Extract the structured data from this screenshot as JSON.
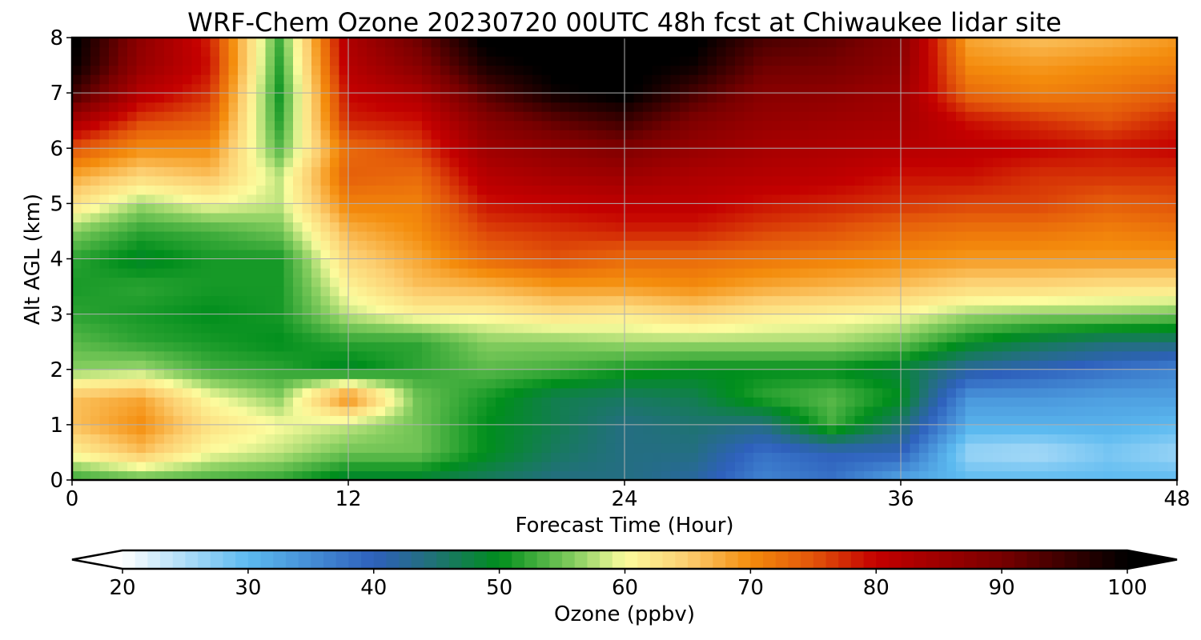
{
  "chart_data": {
    "type": "heatmap",
    "title": "WRF-Chem Ozone  20230720 00UTC 48h fcst at Chiwaukee lidar site",
    "xlabel": "Forecast Time (Hour)",
    "ylabel": "Alt AGL (km)",
    "xlim": [
      0,
      48
    ],
    "ylim": [
      0,
      8
    ],
    "xticks": [
      "0",
      "12",
      "24",
      "36",
      "48"
    ],
    "yticks": [
      "0",
      "1",
      "2",
      "3",
      "4",
      "5",
      "6",
      "7",
      "8"
    ],
    "grid": true,
    "colorbar": {
      "label": "Ozone  (ppbv)",
      "range": [
        20,
        100
      ],
      "ticks": [
        "20",
        "30",
        "40",
        "50",
        "60",
        "70",
        "80",
        "90",
        "100"
      ],
      "extend": "both",
      "orientation": "horizontal"
    },
    "x": [
      0,
      3,
      6,
      9,
      12,
      15,
      18,
      21,
      24,
      27,
      30,
      33,
      36,
      39,
      42,
      45,
      48
    ],
    "y": [
      0,
      0.5,
      1,
      1.5,
      2,
      2.5,
      3,
      3.5,
      4,
      4.5,
      5,
      5.5,
      6,
      6.5,
      7,
      7.5,
      8
    ],
    "z": [
      [
        52,
        54,
        53,
        52,
        48,
        48,
        46,
        44,
        44,
        42,
        36,
        38,
        32,
        30,
        30,
        30,
        30
      ],
      [
        61,
        66,
        60,
        58,
        55,
        55,
        50,
        46,
        44,
        44,
        38,
        40,
        40,
        26,
        25,
        28,
        26
      ],
      [
        66,
        70,
        63,
        60,
        58,
        55,
        50,
        47,
        44,
        45,
        44,
        53,
        45,
        31,
        31,
        31,
        30
      ],
      [
        66,
        68,
        60,
        56,
        71,
        55,
        51,
        47,
        46,
        47,
        52,
        54,
        50,
        34,
        34,
        33,
        33
      ],
      [
        56,
        57,
        53,
        52,
        49,
        52,
        54,
        53,
        51,
        50,
        50,
        50,
        48,
        42,
        40,
        38,
        36
      ],
      [
        54,
        52,
        51,
        50,
        52,
        52,
        56,
        56,
        57,
        57,
        57,
        57,
        55,
        50,
        47,
        45,
        45
      ],
      [
        52,
        51,
        50,
        51,
        58,
        61,
        61,
        63,
        62,
        64,
        62,
        61,
        60,
        57,
        56,
        56,
        55
      ],
      [
        51,
        52,
        51,
        51,
        61,
        66,
        67,
        69,
        69,
        70,
        68,
        67,
        66,
        64,
        64,
        63,
        63
      ],
      [
        52,
        49,
        51,
        51,
        64,
        68,
        73,
        75,
        73,
        73,
        72,
        71,
        70,
        69,
        69,
        69,
        69
      ],
      [
        56,
        52,
        53,
        55,
        67,
        70,
        76,
        77,
        78,
        78,
        76,
        75,
        73,
        72,
        72,
        71,
        72
      ],
      [
        63,
        57,
        60,
        58,
        71,
        71,
        79,
        80,
        81,
        81,
        79,
        78,
        77,
        76,
        76,
        74,
        75
      ],
      [
        68,
        64,
        66,
        58,
        74,
        73,
        82,
        84,
        85,
        83,
        82,
        81,
        79,
        79,
        77,
        77,
        77
      ],
      [
        75,
        70,
        70,
        54,
        73,
        76,
        85,
        87,
        89,
        86,
        84,
        83,
        82,
        81,
        80,
        79,
        80
      ],
      [
        84,
        76,
        74,
        52,
        78,
        79,
        88,
        92,
        95,
        89,
        86,
        85,
        84,
        79,
        77,
        75,
        78
      ],
      [
        95,
        82,
        77,
        51,
        80,
        83,
        93,
        99,
        101,
        94,
        88,
        87,
        85,
        73,
        71,
        72,
        74
      ],
      [
        100,
        86,
        79,
        52,
        82,
        88,
        98,
        101,
        101,
        99,
        91,
        90,
        87,
        70,
        69,
        70,
        71
      ],
      [
        101,
        87,
        78,
        53,
        83,
        91,
        101,
        102,
        102,
        101,
        94,
        92,
        88,
        68,
        66,
        67,
        69
      ]
    ]
  }
}
